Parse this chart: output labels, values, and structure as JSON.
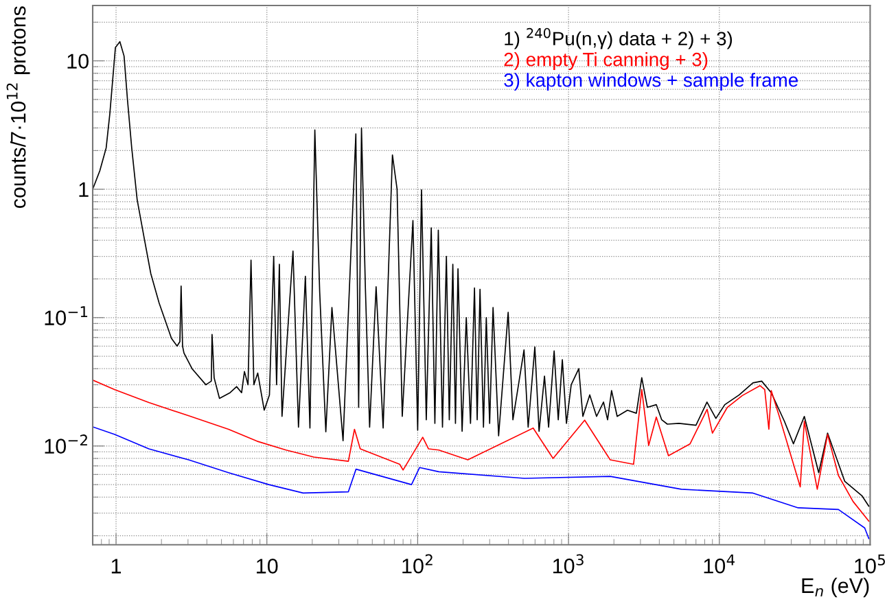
{
  "chart_data": {
    "type": "line",
    "xlabel": "E$_{n}$ (eV)",
    "ylabel": "counts/7·10$^{12}$ protons",
    "log": "xy",
    "grid": true,
    "legend": "top right",
    "line_style": "solid",
    "marker": "none",
    "xlim": [
      0.7,
      100000
    ],
    "ylim": [
      0.0017,
      27
    ],
    "xticks": [
      1,
      10,
      {
        "value": 100,
        "label": "10$^{2}$"
      },
      {
        "value": 1000,
        "label": "10$^{3}$"
      },
      {
        "value": 10000,
        "label": "10$^{4}$"
      },
      {
        "value": 100000,
        "label": "10$^{5}$"
      }
    ],
    "yticks": [
      {
        "value": 0.01,
        "label": "10$^{−2}$"
      },
      {
        "value": 0.1,
        "label": "10$^{−1}$"
      },
      1,
      10
    ],
    "series": [
      {
        "name": "1) $^{240}$Pu(n,γ) data + 2) + 3)",
        "color": "#000000",
        "x": [
          0.7,
          0.78,
          0.86,
          0.91,
          0.99,
          1.06,
          1.13,
          1.19,
          1.27,
          1.38,
          1.54,
          1.7,
          1.93,
          2.33,
          2.54,
          2.65,
          2.7,
          2.76,
          2.82,
          3.19,
          3.94,
          4.28,
          4.33,
          4.47,
          4.85,
          5.7,
          6.3,
          6.8,
          7.1,
          7.5,
          7.85,
          8.2,
          8.7,
          9.6,
          10.4,
          11.1,
          11.6,
          12.1,
          12.6,
          14.9,
          16.2,
          18.0,
          19.3,
          20.8,
          22.4,
          24.6,
          27,
          32,
          38.9,
          40.6,
          42.4,
          45,
          48,
          53,
          59,
          68,
          73,
          79,
          93,
          100,
          106,
          114,
          123,
          130,
          137,
          146,
          155,
          162,
          171,
          178,
          185,
          197,
          210,
          224,
          238,
          248,
          259,
          273,
          285,
          300,
          316,
          344,
          398,
          428,
          466,
          507,
          540,
          598,
          638,
          693,
          738,
          803,
          855,
          910,
          969,
          1042,
          1170,
          1245,
          1383,
          1535,
          1706,
          1816,
          1930,
          2102,
          2460,
          2818,
          3060,
          3334,
          3820,
          4150,
          4520,
          5400,
          7000,
          8280,
          9490,
          10870,
          13550,
          16700,
          19100,
          22100,
          27000,
          31000,
          36600,
          45600,
          52200,
          67900,
          88200,
          98000
        ],
        "values": [
          1.0,
          1.39,
          2.1,
          3.9,
          12.7,
          14.1,
          10.9,
          5.0,
          2.1,
          0.83,
          0.41,
          0.22,
          0.13,
          0.069,
          0.06,
          0.065,
          0.176,
          0.06,
          0.053,
          0.04,
          0.03,
          0.032,
          0.074,
          0.034,
          0.0235,
          0.026,
          0.029,
          0.026,
          0.038,
          0.03,
          0.28,
          0.03,
          0.037,
          0.019,
          0.025,
          0.3,
          0.03,
          0.26,
          0.017,
          0.33,
          0.014,
          0.21,
          0.0138,
          2.9,
          0.158,
          0.0129,
          0.12,
          0.011,
          2.7,
          0.02,
          3.0,
          0.17,
          0.014,
          0.174,
          0.0138,
          1.85,
          1.0,
          0.017,
          0.57,
          0.0133,
          0.99,
          0.016,
          0.5,
          0.015,
          0.48,
          0.014,
          0.3,
          0.016,
          0.26,
          0.015,
          0.24,
          0.013,
          0.1,
          0.015,
          0.17,
          0.016,
          0.166,
          0.014,
          0.1,
          0.015,
          0.12,
          0.012,
          0.11,
          0.016,
          0.03,
          0.056,
          0.014,
          0.059,
          0.013,
          0.035,
          0.014,
          0.055,
          0.016,
          0.047,
          0.015,
          0.03,
          0.04,
          0.017,
          0.025,
          0.017,
          0.022,
          0.016,
          0.027,
          0.017,
          0.019,
          0.018,
          0.034,
          0.02,
          0.021,
          0.016,
          0.0148,
          0.015,
          0.0145,
          0.022,
          0.0164,
          0.021,
          0.025,
          0.031,
          0.032,
          0.026,
          0.0156,
          0.0104,
          0.017,
          0.0062,
          0.0126,
          0.0053,
          0.0041,
          0.0034
        ]
      },
      {
        "name": "2) empty Ti canning + 3)",
        "color": "#ff0000",
        "x": [
          0.7,
          0.98,
          1.65,
          3.03,
          5.57,
          8.6,
          13.4,
          20.5,
          34.7,
          38.1,
          41.6,
          76,
          80,
          108,
          118,
          138,
          215,
          583,
          790,
          1280,
          1890,
          2700,
          3060,
          3400,
          3820,
          4600,
          6400,
          8300,
          9000,
          11300,
          14200,
          18600,
          20000,
          21300,
          22100,
          24900,
          34400,
          36600,
          44600,
          52200,
          61600,
          77000,
          98000
        ],
        "values": [
          0.0326,
          0.0275,
          0.0218,
          0.0172,
          0.0135,
          0.0109,
          0.0093,
          0.0082,
          0.0076,
          0.0135,
          0.0095,
          0.0072,
          0.0065,
          0.0117,
          0.0095,
          0.0093,
          0.0078,
          0.0138,
          0.008,
          0.0159,
          0.0078,
          0.0072,
          0.0275,
          0.0101,
          0.0168,
          0.0084,
          0.0104,
          0.0193,
          0.0126,
          0.02,
          0.0247,
          0.0295,
          0.0275,
          0.0135,
          0.027,
          0.0172,
          0.0048,
          0.0156,
          0.0046,
          0.0123,
          0.0059,
          0.0037,
          0.0026
        ]
      },
      {
        "name": "3) kapton windows + sample frame",
        "color": "#0000ff",
        "x": [
          0.7,
          0.98,
          1.65,
          3.03,
          5.57,
          10.3,
          17.4,
          34.7,
          39,
          91,
          103,
          138,
          510,
          1890,
          5600,
          16700,
          33300,
          61600,
          92000,
          98000
        ],
        "values": [
          0.0141,
          0.0123,
          0.0095,
          0.0078,
          0.0062,
          0.005,
          0.0043,
          0.0044,
          0.0066,
          0.005,
          0.0068,
          0.0063,
          0.0056,
          0.0058,
          0.0046,
          0.0043,
          0.0033,
          0.0032,
          0.0023,
          0.0019
        ]
      }
    ]
  }
}
